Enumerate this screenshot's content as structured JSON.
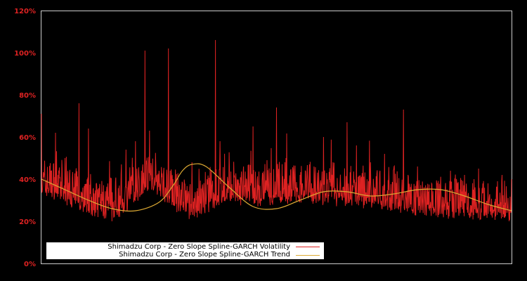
{
  "chart_data": {
    "type": "line",
    "title": "",
    "xlabel": "",
    "ylabel": "",
    "ylim": [
      0,
      120
    ],
    "y_ticks": [
      "0%",
      "20%",
      "40%",
      "60%",
      "80%",
      "100%",
      "120%"
    ],
    "y_tick_values": [
      0,
      20,
      40,
      60,
      80,
      100,
      120
    ],
    "grid": false,
    "legend_position": "lower-left",
    "colors": {
      "background": "#000000",
      "volatility": "#dd2222",
      "trend": "#ddaa33",
      "axis": "#cccccc",
      "tick_labels": "#dd2222"
    },
    "series": [
      {
        "name": "Shimadzu Corp - Zero Slope Spline-GARCH Volatility",
        "color": "#dd2222",
        "description": "Daily conditional volatility, baseline ~20-40% with frequent spikes",
        "x_fraction": [
          0.0,
          0.01,
          0.02,
          0.03,
          0.04,
          0.05,
          0.06,
          0.07,
          0.08,
          0.09,
          0.1,
          0.11,
          0.12,
          0.13,
          0.14,
          0.15,
          0.16,
          0.17,
          0.18,
          0.19,
          0.2,
          0.21,
          0.22,
          0.23,
          0.24,
          0.25,
          0.26,
          0.27,
          0.28,
          0.29,
          0.3,
          0.31,
          0.32,
          0.33,
          0.34,
          0.35,
          0.36,
          0.37,
          0.38,
          0.39,
          0.4,
          0.41,
          0.42,
          0.43,
          0.44,
          0.45,
          0.46,
          0.47,
          0.48,
          0.49,
          0.5,
          0.51,
          0.52,
          0.53,
          0.54,
          0.55,
          0.56,
          0.57,
          0.58,
          0.59,
          0.6,
          0.61,
          0.62,
          0.63,
          0.64,
          0.65,
          0.66,
          0.67,
          0.68,
          0.69,
          0.7,
          0.71,
          0.72,
          0.73,
          0.74,
          0.75,
          0.76,
          0.77,
          0.78,
          0.79,
          0.8,
          0.81,
          0.82,
          0.83,
          0.84,
          0.85,
          0.86,
          0.87,
          0.88,
          0.89,
          0.9,
          0.91,
          0.92,
          0.93,
          0.94,
          0.95,
          0.96,
          0.97,
          0.98,
          0.99,
          1.0
        ],
        "peaks": [
          71,
          65,
          44,
          62,
          37,
          50,
          43,
          30,
          76,
          28,
          64,
          26,
          22,
          34,
          30,
          20,
          37,
          47,
          54,
          42,
          58,
          48,
          101,
          63,
          58,
          44,
          49,
          102,
          40,
          52,
          38,
          34,
          48,
          29,
          40,
          28,
          69,
          106,
          58,
          48,
          44,
          60,
          38,
          46,
          37,
          65,
          36,
          43,
          49,
          42,
          74,
          83,
          50,
          44,
          55,
          42,
          70,
          47,
          46,
          66,
          60,
          42,
          48,
          35,
          54,
          67,
          44,
          56,
          40,
          62,
          48,
          36,
          44,
          52,
          38,
          46,
          36,
          73,
          42,
          38,
          46,
          39,
          36,
          38,
          40,
          34,
          38,
          44,
          39,
          36,
          42,
          37,
          40,
          45,
          36,
          38,
          40,
          39,
          42,
          36,
          40
        ],
        "baseline": [
          30,
          31,
          30,
          29,
          28,
          27,
          27,
          26,
          25,
          24,
          23,
          22,
          21,
          21,
          20,
          20,
          21,
          22,
          24,
          26,
          28,
          30,
          33,
          35,
          33,
          31,
          29,
          27,
          25,
          23,
          22,
          21,
          20,
          20,
          21,
          23,
          25,
          26,
          27,
          27,
          28,
          28,
          27,
          26,
          26,
          26,
          26,
          26,
          27,
          27,
          28,
          28,
          28,
          28,
          28,
          28,
          28,
          28,
          27,
          27,
          27,
          27,
          27,
          27,
          27,
          27,
          27,
          26,
          26,
          26,
          26,
          26,
          25,
          25,
          25,
          24,
          24,
          23,
          23,
          23,
          22,
          22,
          22,
          22,
          22,
          21,
          21,
          21,
          21,
          21,
          21,
          21,
          20,
          20,
          20,
          20,
          20,
          20,
          20,
          20,
          20
        ]
      },
      {
        "name": "Shimadzu Corp - Zero Slope Spline-GARCH Trend",
        "color": "#ddaa33",
        "x_fraction": [
          0.0,
          0.05,
          0.1,
          0.15,
          0.2,
          0.25,
          0.28,
          0.3,
          0.32,
          0.35,
          0.4,
          0.45,
          0.5,
          0.55,
          0.6,
          0.65,
          0.7,
          0.75,
          0.8,
          0.85,
          0.9,
          0.95,
          1.0
        ],
        "values": [
          40,
          35,
          30,
          26,
          25,
          29,
          37,
          44,
          47,
          46,
          36,
          27,
          26,
          30,
          34,
          34,
          32,
          33,
          35,
          35,
          32,
          28,
          25
        ]
      }
    ]
  },
  "legend": {
    "items": [
      {
        "label": "Shimadzu Corp - Zero Slope Spline-GARCH Volatility",
        "color": "#dd2222"
      },
      {
        "label": "Shimadzu Corp - Zero Slope Spline-GARCH Trend",
        "color": "#ddaa33"
      }
    ]
  }
}
